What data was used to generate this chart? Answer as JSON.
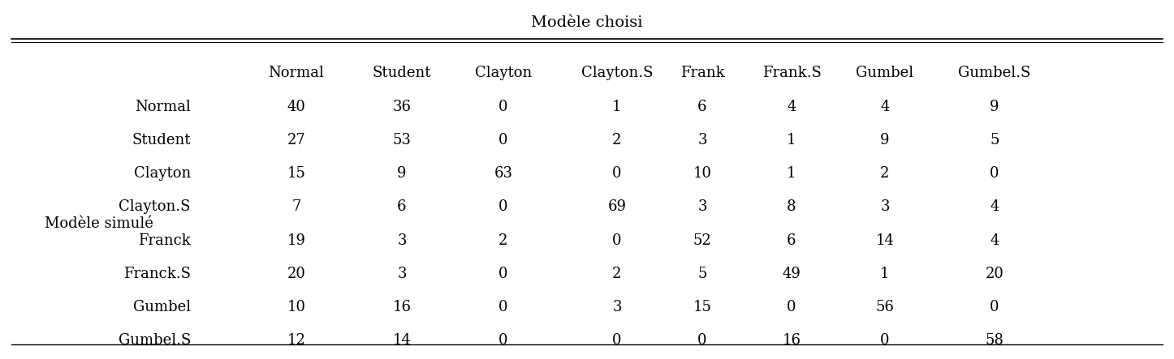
{
  "title": "Modèle choisi",
  "row_label_group": "Modèle simulé",
  "col_headers": [
    "Normal",
    "Student",
    "Clayton",
    "Clayton.S",
    "Frank",
    "Frank.S",
    "Gumbel",
    "Gumbel.S"
  ],
  "row_headers": [
    "Normal",
    "Student",
    "Clayton",
    "Clayton.S",
    "Franck",
    "Franck.S",
    "Gumbel",
    "Gumbel.S"
  ],
  "data": [
    [
      40,
      36,
      0,
      1,
      6,
      4,
      4,
      9
    ],
    [
      27,
      53,
      0,
      2,
      3,
      1,
      9,
      5
    ],
    [
      15,
      9,
      63,
      0,
      10,
      1,
      2,
      0
    ],
    [
      7,
      6,
      0,
      69,
      3,
      8,
      3,
      4
    ],
    [
      19,
      3,
      2,
      0,
      52,
      6,
      14,
      4
    ],
    [
      20,
      3,
      0,
      2,
      5,
      49,
      1,
      20
    ],
    [
      10,
      16,
      0,
      3,
      15,
      0,
      56,
      0
    ],
    [
      12,
      14,
      0,
      0,
      0,
      16,
      0,
      58
    ]
  ],
  "bg_color": "#ffffff",
  "text_color": "#000000",
  "font_size": 13,
  "title_font_size": 14
}
